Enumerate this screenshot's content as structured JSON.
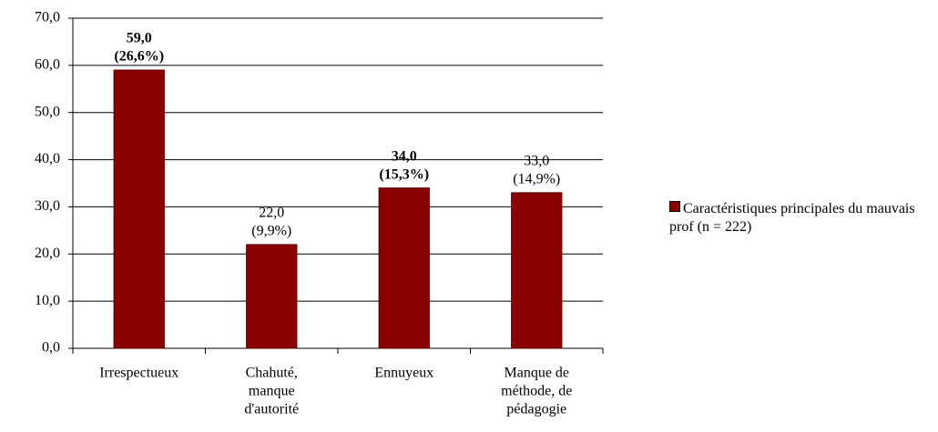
{
  "chart_data": {
    "type": "bar",
    "categories": [
      [
        "Irrespectueux"
      ],
      [
        "Chahuté,",
        "manque",
        "d'autorité"
      ],
      [
        "Ennuyeux"
      ],
      [
        "Manque de",
        "méthode, de",
        "pédagogie"
      ]
    ],
    "series": [
      {
        "name": "Caractéristiques principales du mauvais prof (n = 222)",
        "color": "#8b0000",
        "values": [
          59,
          22,
          34,
          33
        ],
        "value_labels": [
          "59,0",
          "22,0",
          "34,0",
          "33,0"
        ],
        "percent_labels": [
          "(26,6%)",
          "(9,9%)",
          "(15,3%)",
          "(14,9%)"
        ],
        "bold_labels": [
          true,
          false,
          true,
          false
        ]
      }
    ],
    "ylim": [
      0,
      70
    ],
    "yticks": [
      {
        "value": 0,
        "label": "0,0"
      },
      {
        "value": 10,
        "label": "10,0"
      },
      {
        "value": 20,
        "label": "20,0"
      },
      {
        "value": 30,
        "label": "30,0"
      },
      {
        "value": 40,
        "label": "40,0"
      },
      {
        "value": 50,
        "label": "50,0"
      },
      {
        "value": 60,
        "label": "60,0"
      },
      {
        "value": 70,
        "label": "70,0"
      }
    ],
    "grid": true,
    "legend": "right"
  }
}
